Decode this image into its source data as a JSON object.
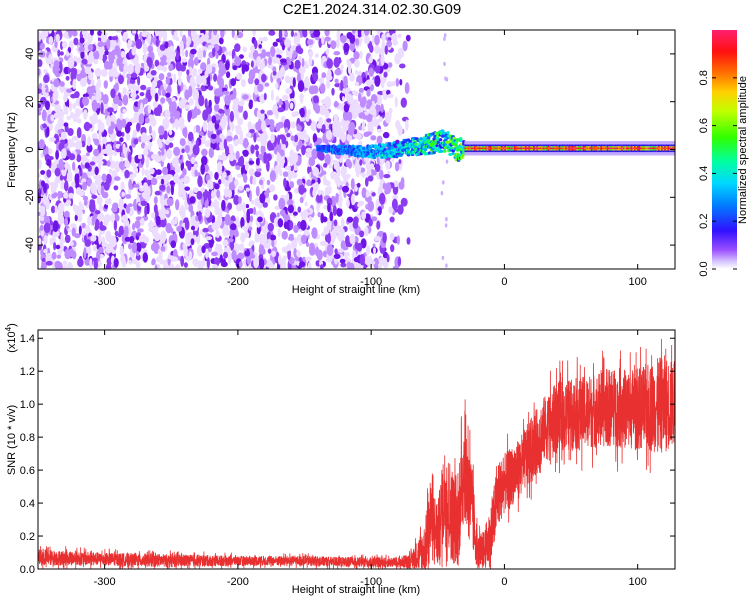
{
  "figure": {
    "title": "C2E1.2024.314.02.30.G09"
  },
  "chart_data": [
    {
      "type": "heatmap",
      "title": "C2E1.2024.314.02.30.G09",
      "xlabel": "Height of straight line (km)",
      "ylabel": "Frequency (Hz)",
      "xlim": [
        -350,
        128
      ],
      "ylim": [
        -50,
        50
      ],
      "xticks": [
        -300,
        -200,
        -100,
        0,
        100
      ],
      "yticks": [
        -40,
        -20,
        0,
        20,
        40
      ],
      "grid": false,
      "colorbar": {
        "label": "Normalized spectral amplitude",
        "range": [
          0,
          1
        ],
        "ticks": [
          "0.0",
          "0.2",
          "0.4",
          "0.6",
          "0.8"
        ],
        "colors": [
          "#ffffff",
          "#7a00ff",
          "#0000ff",
          "#00c8ff",
          "#00ff80",
          "#40ff00",
          "#c8ff00",
          "#ffcc00",
          "#ff6600",
          "#ff0000",
          "#ff2070"
        ]
      },
      "regions": [
        {
          "name": "noise",
          "x": [
            -350,
            -82
          ],
          "y": [
            -50,
            50
          ],
          "amplitude": [
            0.0,
            0.1
          ]
        },
        {
          "name": "emerging-signal",
          "x": [
            -140,
            -30
          ],
          "y": [
            -4,
            8
          ],
          "amplitude": [
            0.15,
            0.55
          ]
        },
        {
          "name": "tracked-signal",
          "x": [
            -30,
            128
          ],
          "y": [
            -2,
            2
          ],
          "amplitude": [
            0.6,
            1.0
          ]
        }
      ],
      "signal_center": [
        {
          "x": -140,
          "y": 0.5
        },
        {
          "x": -100,
          "y": -1.0
        },
        {
          "x": -80,
          "y": 0.0
        },
        {
          "x": -60,
          "y": 2.0
        },
        {
          "x": -45,
          "y": 3.5
        },
        {
          "x": -35,
          "y": 0.0
        },
        {
          "x": -30,
          "y": 0.5
        },
        {
          "x": 0,
          "y": 0.5
        },
        {
          "x": 128,
          "y": 0.5
        }
      ]
    },
    {
      "type": "line",
      "xlabel": "Height of straight line (km)",
      "ylabel": "SNR (10 * v/v)",
      "y_multiplier": "(x10",
      "y_multiplier_exp": "4",
      "y_multiplier_close": ")",
      "xlim": [
        -350,
        128
      ],
      "ylim": [
        0,
        1.45
      ],
      "xticks": [
        -300,
        -200,
        -100,
        0,
        100
      ],
      "yticks": [
        "0.0",
        "0.2",
        "0.4",
        "0.6",
        "0.8",
        "1.0",
        "1.2",
        "1.4"
      ],
      "grid": false,
      "series": [
        {
          "color": "#e83030",
          "x": [
            -350,
            -300,
            -250,
            -200,
            -150,
            -100,
            -80,
            -70,
            -60,
            -55,
            -50,
            -45,
            -40,
            -35,
            -30,
            -25,
            -20,
            -15,
            -10,
            -5,
            0,
            10,
            20,
            30,
            40,
            60,
            80,
            100,
            120,
            128
          ],
          "values": [
            0.07,
            0.06,
            0.05,
            0.05,
            0.05,
            0.04,
            0.04,
            0.05,
            0.12,
            0.3,
            0.2,
            0.45,
            0.35,
            0.25,
            0.65,
            0.4,
            0.1,
            0.12,
            0.2,
            0.45,
            0.52,
            0.6,
            0.72,
            0.85,
            0.92,
            0.95,
            0.98,
            0.97,
            1.0,
            1.0
          ],
          "noise_amplitude": [
            0.05,
            0.04,
            0.04,
            0.03,
            0.03,
            0.03,
            0.03,
            0.05,
            0.15,
            0.25,
            0.2,
            0.3,
            0.3,
            0.25,
            0.35,
            0.3,
            0.1,
            0.12,
            0.2,
            0.2,
            0.18,
            0.18,
            0.2,
            0.2,
            0.22,
            0.22,
            0.24,
            0.25,
            0.3,
            0.25
          ]
        }
      ]
    }
  ]
}
